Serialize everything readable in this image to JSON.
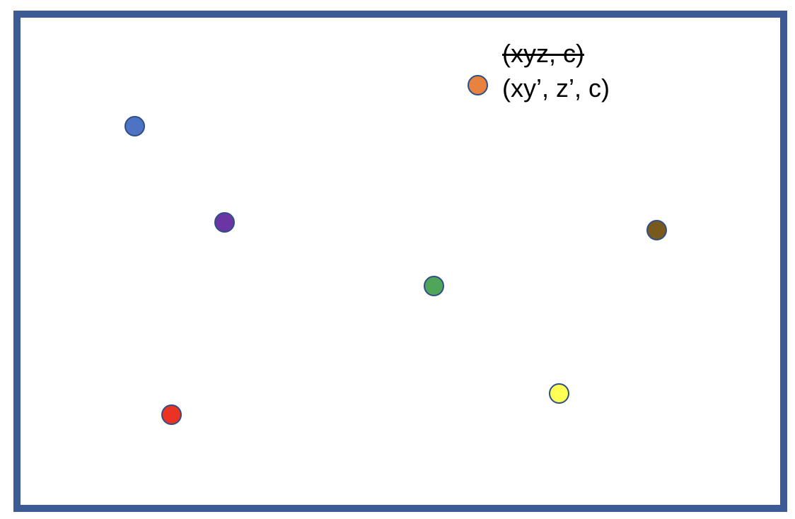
{
  "labels": {
    "struck": "(xyz, c)",
    "current": "(xy’, z’, c)"
  },
  "frame_color": "#3C5A94",
  "dot_outline_color": "#2F4F86",
  "dots": [
    {
      "name": "orange-point",
      "color": "#E8823F"
    },
    {
      "name": "blue-point",
      "color": "#4F73C4"
    },
    {
      "name": "purple-point",
      "color": "#6B36A3"
    },
    {
      "name": "brown-point",
      "color": "#7A5A1C"
    },
    {
      "name": "green-point",
      "color": "#4FA55A"
    },
    {
      "name": "yellow-point",
      "color": "#FFFF55"
    },
    {
      "name": "red-point",
      "color": "#EA3323"
    }
  ]
}
